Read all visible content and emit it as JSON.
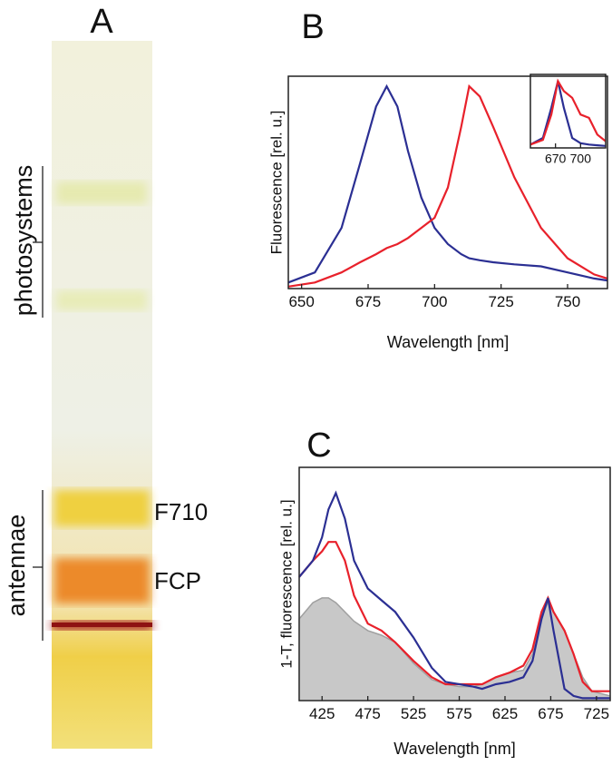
{
  "gel": {
    "panel_label": "A",
    "group_labels": [
      "photosystems",
      "antennae"
    ],
    "band_labels": [
      "F710",
      "FCP"
    ]
  },
  "chart_data": [
    {
      "type": "line",
      "panel_label": "B",
      "x_label": "Wavelength [nm]",
      "y_label": "Fluorescence [rel. u.]",
      "x": [
        645,
        655,
        665,
        672,
        678,
        682,
        686,
        690,
        695,
        700,
        705,
        710,
        713,
        717,
        722,
        730,
        740,
        750,
        760,
        765
      ],
      "series": [
        {
          "color": "#2b2f93",
          "values": [
            0.03,
            0.08,
            0.3,
            0.62,
            0.9,
            1.0,
            0.9,
            0.68,
            0.45,
            0.3,
            0.22,
            0.17,
            0.15,
            0.14,
            0.13,
            0.12,
            0.11,
            0.08,
            0.05,
            0.04
          ]
        },
        {
          "color": "#e8212b",
          "values": [
            0.01,
            0.03,
            0.08,
            0.13,
            0.17,
            0.2,
            0.22,
            0.25,
            0.3,
            0.35,
            0.5,
            0.8,
            1.0,
            0.95,
            0.8,
            0.55,
            0.3,
            0.15,
            0.07,
            0.05
          ]
        }
      ],
      "xlim": [
        645,
        765
      ],
      "xticks": [
        650,
        675,
        700,
        725,
        750
      ],
      "ylim": [
        0,
        1.05
      ]
    },
    {
      "type": "line",
      "x": [
        640,
        655,
        665,
        673,
        680,
        690,
        700,
        710,
        720,
        730
      ],
      "series": [
        {
          "color": "#2b2f93",
          "values": [
            0.05,
            0.15,
            0.6,
            1.0,
            0.6,
            0.15,
            0.07,
            0.05,
            0.04,
            0.03
          ]
        },
        {
          "color": "#e8212b",
          "values": [
            0.05,
            0.12,
            0.5,
            1.0,
            0.85,
            0.75,
            0.5,
            0.45,
            0.2,
            0.1
          ]
        }
      ],
      "xlim": [
        640,
        730
      ],
      "xticks": [
        670,
        700
      ],
      "ylim": [
        0,
        1.1
      ]
    },
    {
      "type": "line",
      "panel_label": "C",
      "x_label": "Wavelength [nm]",
      "y_label": "1-T, fluorescence [rel. u.]",
      "x": [
        400,
        415,
        425,
        432,
        440,
        450,
        460,
        475,
        490,
        505,
        525,
        545,
        560,
        575,
        590,
        600,
        615,
        630,
        645,
        655,
        665,
        672,
        678,
        690,
        700,
        710,
        720,
        740
      ],
      "series": [
        {
          "color": "#a0a0a0",
          "style": "area",
          "values": [
            0.35,
            0.42,
            0.44,
            0.44,
            0.42,
            0.38,
            0.34,
            0.3,
            0.28,
            0.25,
            0.16,
            0.09,
            0.07,
            0.06,
            0.06,
            0.07,
            0.1,
            0.12,
            0.13,
            0.2,
            0.36,
            0.42,
            0.38,
            0.3,
            0.2,
            0.1,
            0.04,
            0.02
          ]
        },
        {
          "color": "#e8212b",
          "values": [
            0.53,
            0.6,
            0.64,
            0.68,
            0.68,
            0.6,
            0.45,
            0.33,
            0.3,
            0.25,
            0.17,
            0.1,
            0.07,
            0.07,
            0.07,
            0.07,
            0.1,
            0.12,
            0.15,
            0.22,
            0.38,
            0.44,
            0.38,
            0.3,
            0.2,
            0.08,
            0.04,
            0.04
          ]
        },
        {
          "color": "#2b2f93",
          "values": [
            0.53,
            0.6,
            0.7,
            0.82,
            0.89,
            0.78,
            0.6,
            0.48,
            0.43,
            0.38,
            0.27,
            0.14,
            0.08,
            0.07,
            0.06,
            0.05,
            0.07,
            0.08,
            0.1,
            0.17,
            0.35,
            0.44,
            0.3,
            0.05,
            0.02,
            0.01,
            0.01,
            0.01
          ]
        }
      ],
      "xlim": [
        400,
        740
      ],
      "xticks": [
        425,
        475,
        525,
        575,
        625,
        675,
        725
      ],
      "ylim": [
        0,
        1
      ]
    }
  ]
}
